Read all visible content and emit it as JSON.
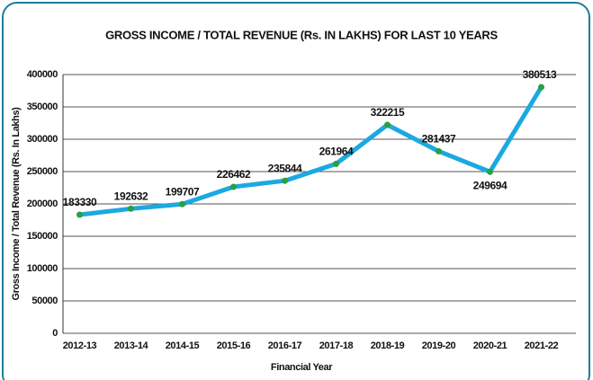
{
  "chart_data": {
    "type": "line",
    "title": "GROSS INCOME / TOTAL REVENUE (Rs. IN LAKHS) FOR LAST 10 YEARS",
    "x_label": "Financial Year",
    "y_label": "Gross Income / Total Revenue (Rs. In Lakhs)",
    "categories": [
      "2012-13",
      "2013-14",
      "2014-15",
      "2015-16",
      "2016-17",
      "2017-18",
      "2018-19",
      "2019-20",
      "2020-21",
      "2021-22"
    ],
    "series": [
      {
        "name": "Gross Income / Total Revenue",
        "color": "#1ba9e1",
        "marker_color": "#2e9e3e",
        "values": [
          183330,
          192632,
          199707,
          226462,
          235844,
          261964,
          322215,
          281437,
          249694,
          380513
        ]
      }
    ],
    "ylim": [
      0,
      400000
    ],
    "yticks": [
      0,
      50000,
      100000,
      150000,
      200000,
      250000,
      300000,
      350000,
      400000
    ],
    "grid": true
  }
}
